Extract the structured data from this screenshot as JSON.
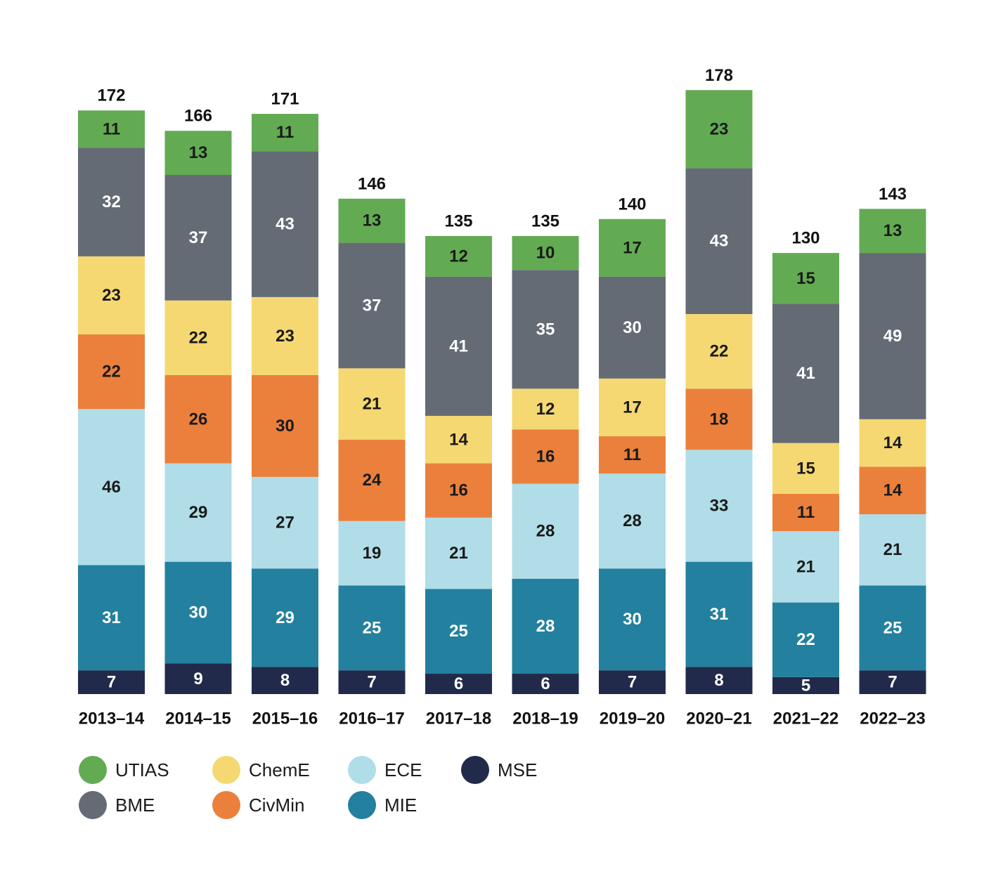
{
  "chart_data": {
    "type": "bar",
    "stacked": true,
    "title": "",
    "xlabel": "",
    "ylabel": "",
    "categories": [
      "2013–14",
      "2014–15",
      "2015–16",
      "2016–17",
      "2017–18",
      "2018–19",
      "2019–20",
      "2020–21",
      "2021–22",
      "2022–23"
    ],
    "totals": [
      172,
      166,
      171,
      146,
      135,
      135,
      140,
      178,
      130,
      143
    ],
    "series": [
      {
        "name": "MSE",
        "color": "#222a4b",
        "label_color": "#ffffff",
        "values": [
          7,
          9,
          8,
          7,
          6,
          6,
          7,
          8,
          5,
          7
        ]
      },
      {
        "name": "MIE",
        "color": "#23809f",
        "label_color": "#ffffff",
        "values": [
          31,
          30,
          29,
          25,
          25,
          28,
          30,
          31,
          22,
          25
        ]
      },
      {
        "name": "ECE",
        "color": "#b0dde8",
        "label_color": "#1a1a1a",
        "values": [
          46,
          29,
          27,
          19,
          21,
          28,
          28,
          33,
          21,
          21
        ]
      },
      {
        "name": "CivMin",
        "color": "#ea803c",
        "label_color": "#1a1a1a",
        "values": [
          22,
          26,
          30,
          24,
          16,
          16,
          11,
          18,
          11,
          14
        ]
      },
      {
        "name": "ChemE",
        "color": "#f5d872",
        "label_color": "#1a1a1a",
        "values": [
          23,
          22,
          23,
          21,
          14,
          12,
          17,
          22,
          15,
          14
        ]
      },
      {
        "name": "BME",
        "color": "#646b74",
        "label_color": "#ffffff",
        "values": [
          32,
          37,
          43,
          37,
          41,
          35,
          30,
          43,
          41,
          49
        ]
      },
      {
        "name": "UTIAS",
        "color": "#62ab52",
        "label_color": "#1a1a1a",
        "values": [
          11,
          13,
          11,
          13,
          12,
          10,
          17,
          23,
          15,
          13
        ]
      }
    ],
    "legend_order": [
      "UTIAS",
      "BME",
      "ChemE",
      "CivMin",
      "ECE",
      "MIE",
      "MSE"
    ],
    "legend_position": "bottom-left",
    "grid": false
  }
}
